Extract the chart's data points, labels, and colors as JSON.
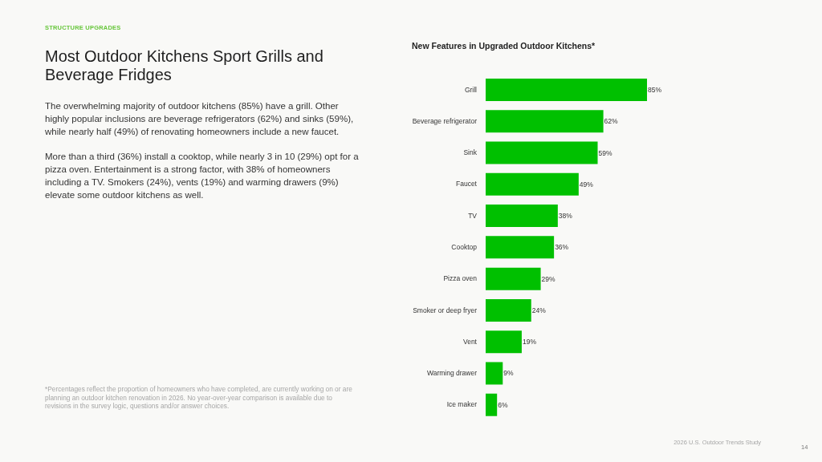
{
  "chart_data": {
    "type": "bar",
    "orientation": "horizontal",
    "title": "New Features in Upgraded Outdoor Kitchens*",
    "categories": [
      "Grill",
      "Beverage refrigerator",
      "Sink",
      "Faucet",
      "TV",
      "Cooktop",
      "Pizza oven",
      "Smoker or deep fryer",
      "Vent",
      "Warming drawer",
      "Ice maker"
    ],
    "values": [
      85,
      62,
      59,
      49,
      38,
      36,
      29,
      24,
      19,
      9,
      6
    ],
    "color": "#00c000",
    "value_labels": [
      "85%",
      "62%",
      "59%",
      "49%",
      "38%",
      "36%",
      "29%",
      "24%",
      "19%",
      "9%",
      "6%"
    ],
    "annotations": [
      "STRUCTURE UPGRADES",
      "Most Outdoor Kitchens Sport Grills and Beverage Fridges",
      "The overwhelming majority of outdoor kitchens (85%) have a grill. Other highly popular inclusions are beverage refrigerators (62%) and sinks (59%), while nearly half (49%) of renovating homeowners include a new faucet.",
      "More than a third (36%) install a cooktop, while nearly 3 in 10 (29%) opt for a pizza oven. Entertainment is a strong factor, with 38% of homeowners including a TV. Smokers (24%), vents (19%) and warming drawers (9%) elevate some outdoor kitchens as well.",
      "*Percentages reflect the proportion of homeowners who have completed, are currently working on or are planning an outdoor kitchen renovation in 2026. No year-over-year comparison is available due to revisions in the survey logic, questions and/or answer choices.",
      "2026 U.S. Outdoor Trends Study",
      "14"
    ]
  }
}
